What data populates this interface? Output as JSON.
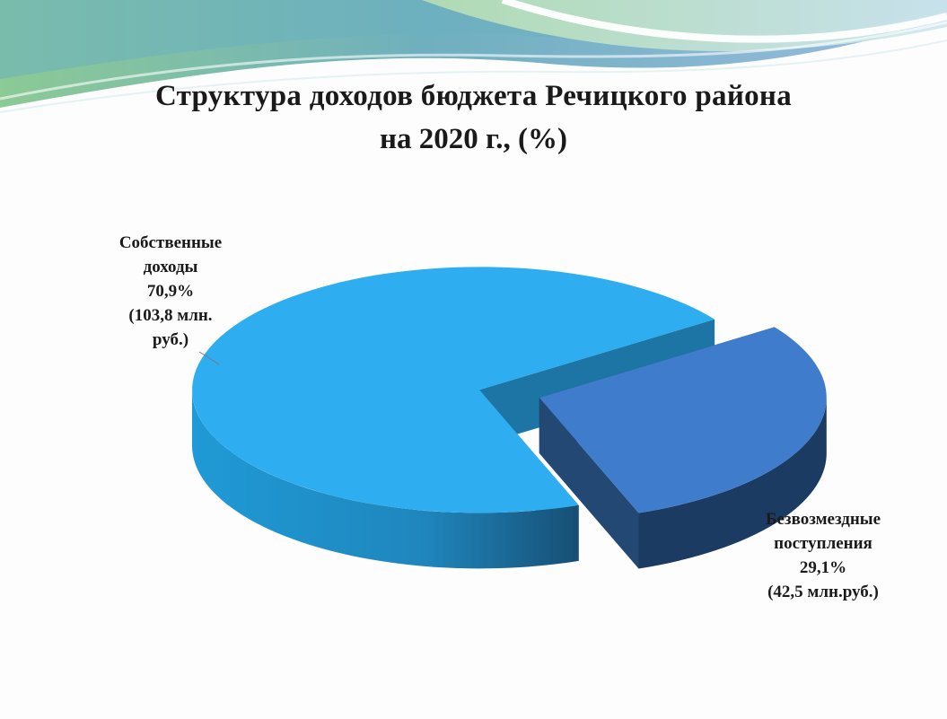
{
  "slide": {
    "title_line_1": "Структура доходов  бюджета Речицкого района",
    "title_line_2": "на 2020 г., (%)"
  },
  "chart_data": {
    "type": "pie",
    "style": "3d-exploded",
    "title": "Структура доходов  бюджета Речицкого района на 2020 г., (%)",
    "slices": [
      {
        "name": "Собственные доходы",
        "value": 70.9,
        "amount": 103.8,
        "label_lines": [
          "Собственные",
          "доходы",
          "70,9%",
          "(103,8 млн.",
          "руб.)"
        ],
        "color": "#2eaef0"
      },
      {
        "name": "Безвозмездные поступления",
        "value": 29.1,
        "amount": 42.5,
        "label_lines": [
          "Безвозмездные",
          "поступления",
          "29,1%",
          "(42,5 млн.руб.)"
        ],
        "color": "#3f7ccc"
      }
    ],
    "legend": "none"
  },
  "colors": {
    "own_top": "#2eaef0",
    "own_side": "#2192c8",
    "own_inner": "#1c75a4",
    "grant_top": "#3f7ccc",
    "grant_side": "#1c3b62",
    "wave_green": "#8fcf90",
    "wave_teal": "#64aab8",
    "wave_blue": "#8fb4de"
  }
}
